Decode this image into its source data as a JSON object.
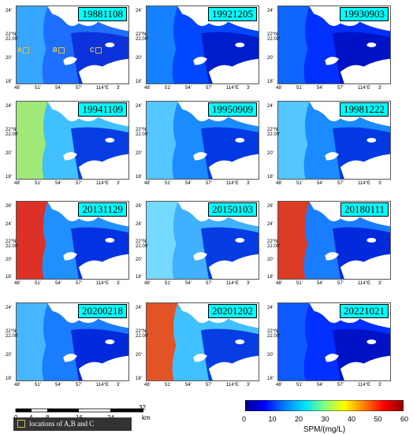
{
  "panels": [
    {
      "date": "19881108",
      "style": 0
    },
    {
      "date": "19921205",
      "style": 1
    },
    {
      "date": "19930903",
      "style": 2
    },
    {
      "date": "19941109",
      "style": 3
    },
    {
      "date": "19950909",
      "style": 4
    },
    {
      "date": "19981222",
      "style": 5
    },
    {
      "date": "20131129",
      "style": 6
    },
    {
      "date": "20150103",
      "style": 7
    },
    {
      "date": "20180111",
      "style": 8
    },
    {
      "date": "20200218",
      "style": 9
    },
    {
      "date": "20201202",
      "style": 10
    },
    {
      "date": "20221021",
      "style": 11
    }
  ],
  "axes": {
    "lat_ticks": [
      "24'",
      "22°N\n22.00'",
      "20'",
      "18'"
    ],
    "lat_ticks_row3": [
      "26'",
      "24'",
      "22°N\n22.00'",
      "20'",
      "18'"
    ],
    "lon_ticks": [
      "48'",
      "51'",
      "54'",
      "57'",
      "114°E",
      "3'"
    ]
  },
  "sites": {
    "labels": [
      "A",
      "B",
      "C"
    ]
  },
  "scale_bar": {
    "ticks": [
      "0",
      "4",
      "8",
      "16",
      "24",
      "32"
    ],
    "unit": "km"
  },
  "colorbar": {
    "label": "SPM/(mg/L)",
    "ticks": [
      "0",
      "10",
      "20",
      "30",
      "40",
      "50",
      "60"
    ],
    "min": 0,
    "max": 60,
    "colors": [
      "#00008b",
      "#0000ff",
      "#0080ff",
      "#00e0ff",
      "#80ff80",
      "#ffff00",
      "#ff8000",
      "#ff0000",
      "#8b0000"
    ]
  },
  "legend": {
    "label": "locations of A,B and C",
    "box_color": "#d4c04a"
  }
}
